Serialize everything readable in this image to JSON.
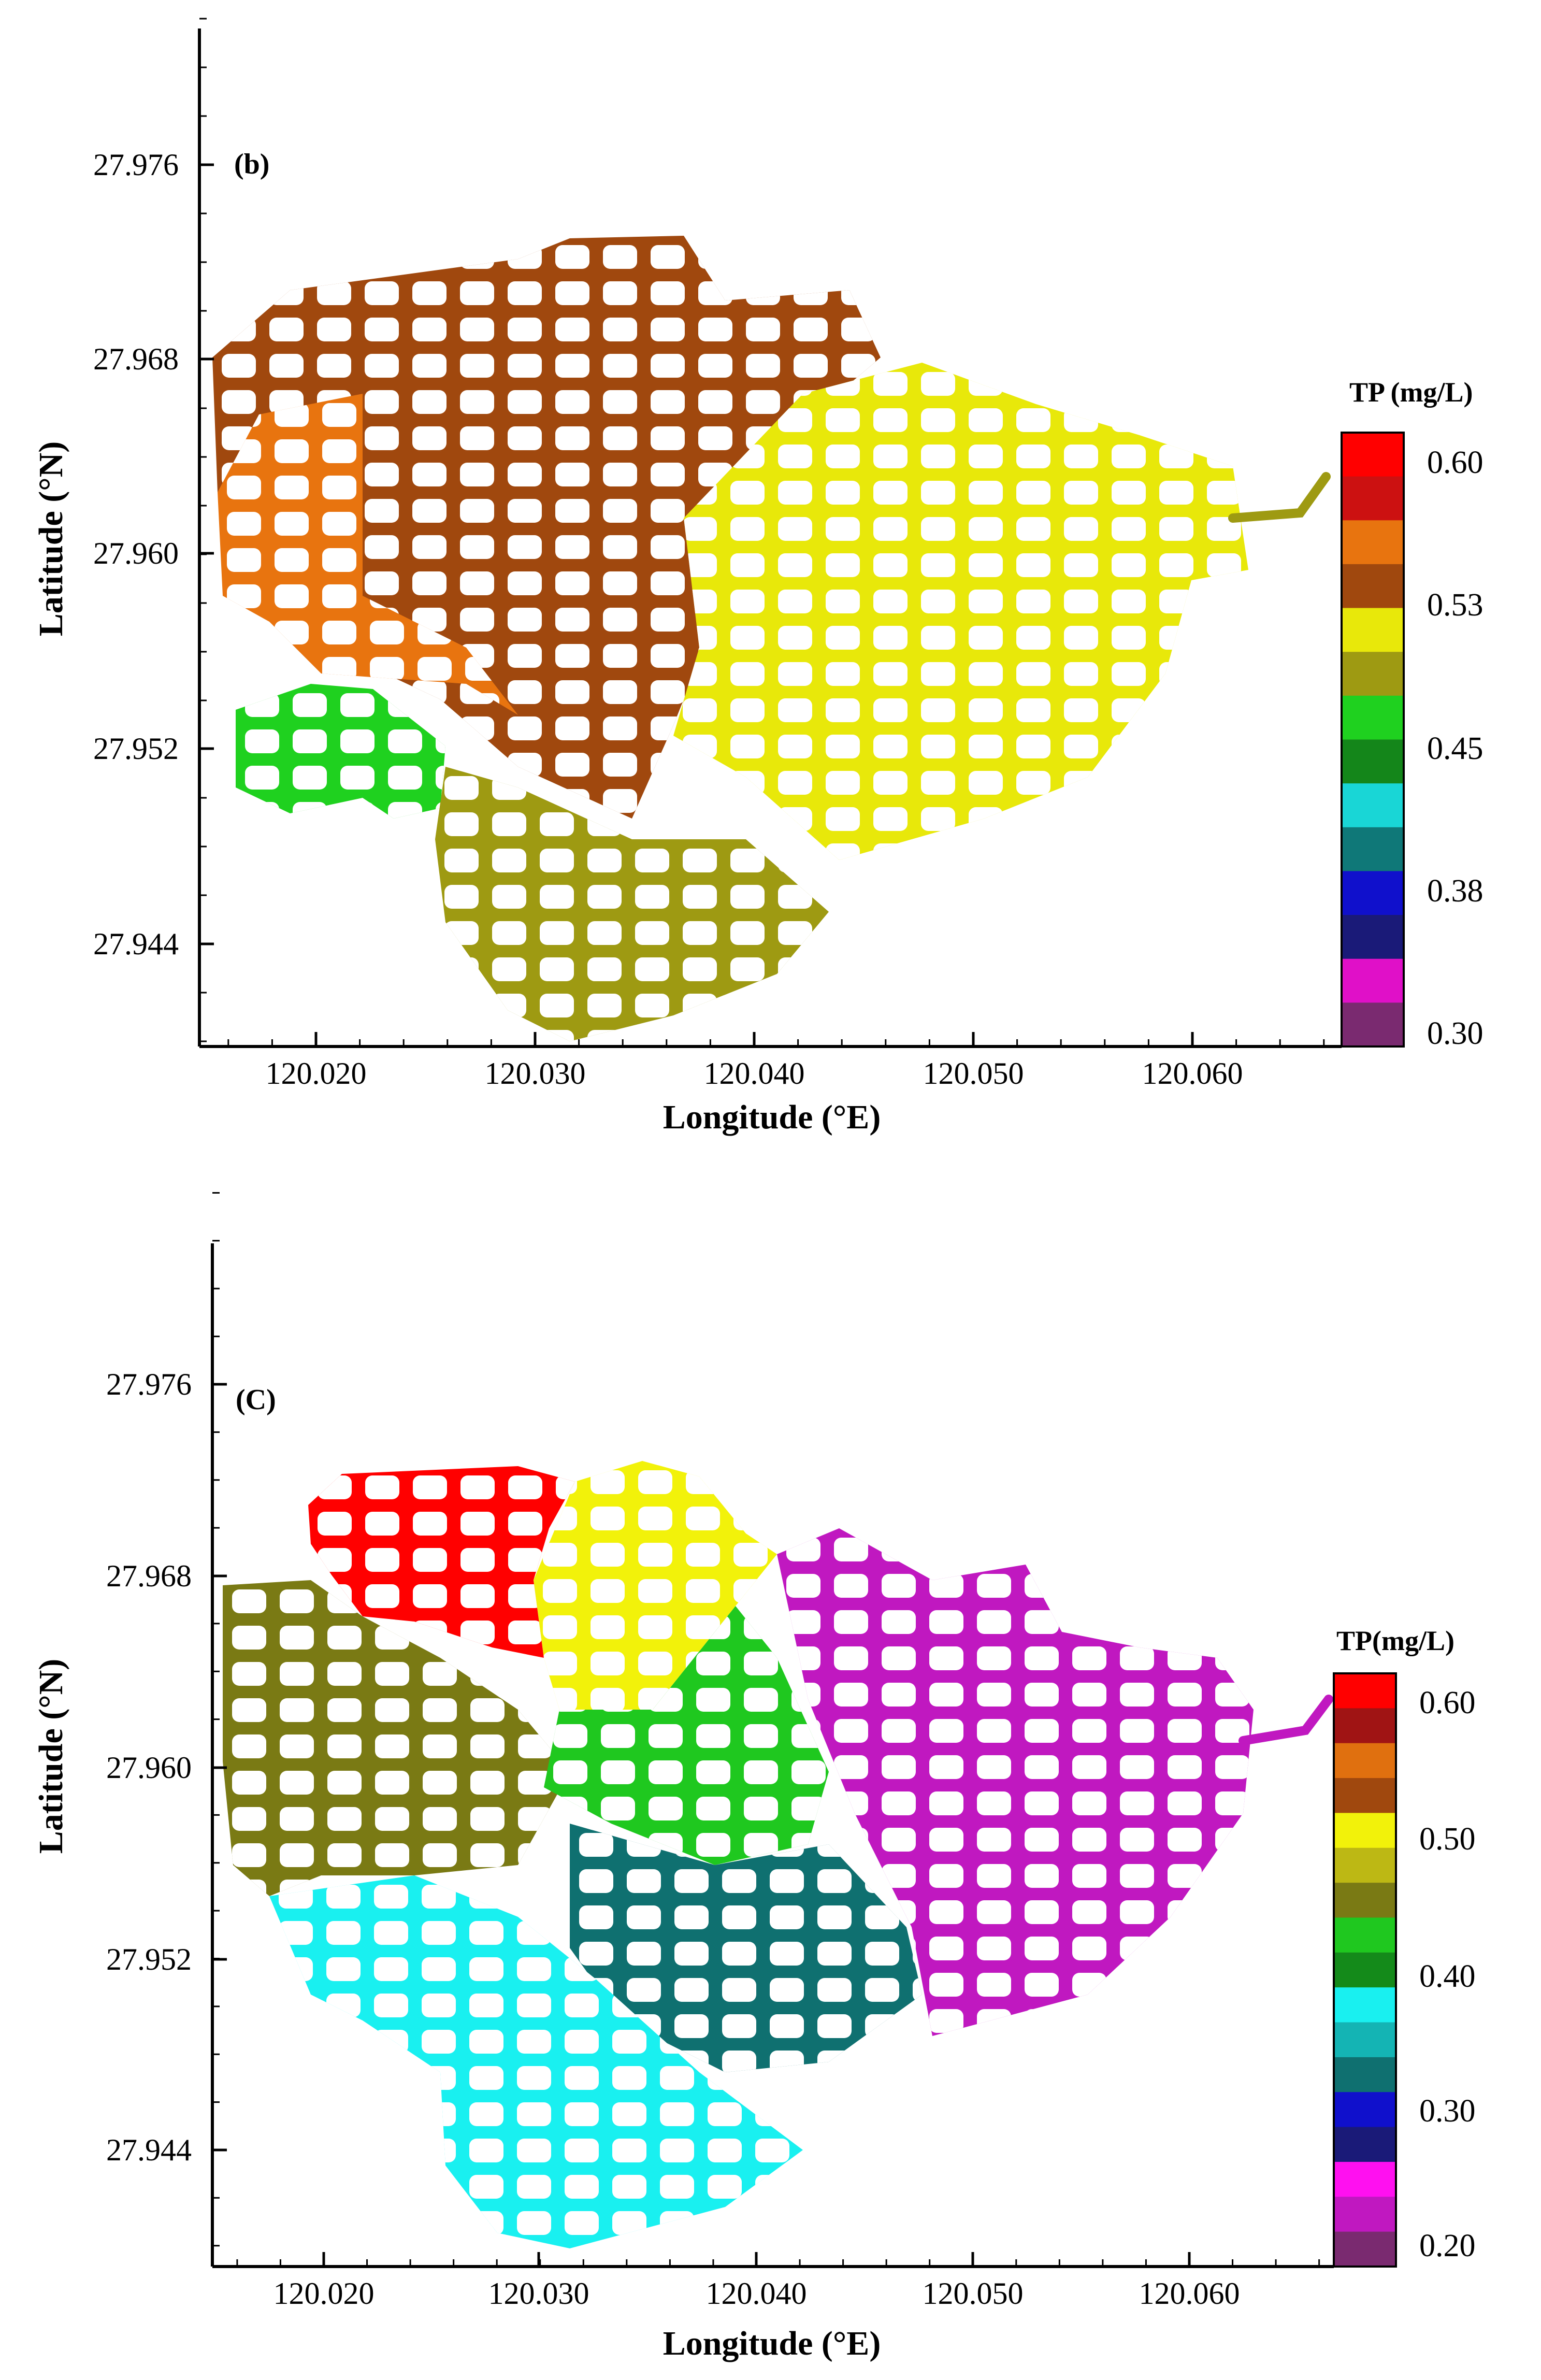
{
  "panels": [
    {
      "id": "b",
      "label": "(b)",
      "x_label": "Longitude (°E)",
      "y_label": "Latitude (°N)",
      "x_ticks": [
        "120.020",
        "120.030",
        "120.040",
        "120.050",
        "120.060"
      ],
      "y_ticks": [
        "27.976",
        "27.968",
        "27.960",
        "27.952",
        "27.944"
      ],
      "colorbar": {
        "title": "TP (mg/L)",
        "labels": [
          "0.60",
          "0.53",
          "0.45",
          "0.38",
          "0.30"
        ],
        "colors": [
          "#ff0000",
          "#cc1111",
          "#e8740f",
          "#a0480e",
          "#e8e80a",
          "#9e9a12",
          "#1fd11f",
          "#14861a",
          "#19d6d6",
          "#0f7878",
          "#1010cc",
          "#1a1a78",
          "#e010c8",
          "#7a2a70"
        ]
      },
      "map_regions": [
        {
          "name": "northwest-region",
          "color": "#a0480e"
        },
        {
          "name": "west-region",
          "color": "#e8740f"
        },
        {
          "name": "east-region",
          "color": "#e8e80a"
        },
        {
          "name": "southwest-region",
          "color": "#1fd11f"
        },
        {
          "name": "south-region",
          "color": "#9e9a12"
        }
      ]
    },
    {
      "id": "c",
      "label": "(C)",
      "x_label": "Longitude (°E)",
      "y_label": "Latitude (°N)",
      "x_ticks": [
        "120.020",
        "120.030",
        "120.040",
        "120.050",
        "120.060"
      ],
      "y_ticks": [
        "27.976",
        "27.968",
        "27.960",
        "27.952",
        "27.944"
      ],
      "colorbar": {
        "title": "TP(mg/L)",
        "labels": [
          "0.60",
          "0.50",
          "0.40",
          "0.30",
          "0.20"
        ],
        "colors": [
          "#ff0000",
          "#a01414",
          "#e0700f",
          "#a0480e",
          "#f2f20a",
          "#bdb814",
          "#7a7a14",
          "#1fc81f",
          "#148a1a",
          "#19f0f0",
          "#14b4b4",
          "#0f7070",
          "#1010cc",
          "#1a1a78",
          "#ff10f0",
          "#c018c0",
          "#7a2a70"
        ]
      },
      "map_regions": [
        {
          "name": "northwest-region",
          "color": "#ff0000"
        },
        {
          "name": "north-region",
          "color": "#f2f20a"
        },
        {
          "name": "west-region",
          "color": "#7a7a14"
        },
        {
          "name": "center-region",
          "color": "#1fc81f"
        },
        {
          "name": "southcenter-region",
          "color": "#0f7070"
        },
        {
          "name": "southwest-region",
          "color": "#19f0f0"
        },
        {
          "name": "east-region",
          "color": "#c018c0"
        }
      ]
    }
  ]
}
